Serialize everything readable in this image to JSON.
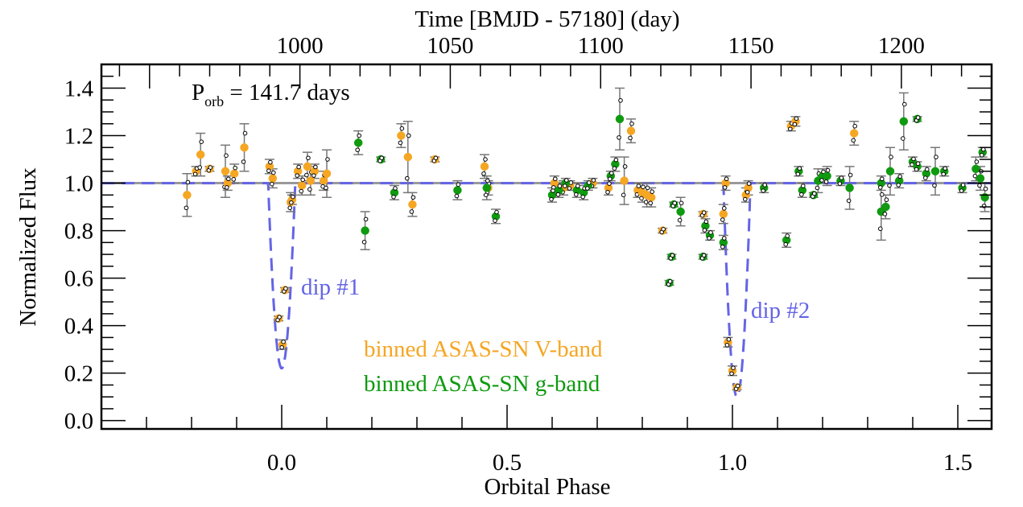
{
  "chart_data": {
    "type": "scatter",
    "title": "",
    "xlabel": "Orbital Phase",
    "ylabel": "Normalized Flux",
    "top_xlabel": "Time [BMJD - 57180] (day)",
    "xlim": [
      -0.4,
      1.575
    ],
    "ylim": [
      -0.035,
      1.5
    ],
    "top_xlim": [
      934.0,
      1230.0
    ],
    "x_ticks": [
      0.0,
      0.5,
      1.0,
      1.5
    ],
    "x_tick_labels": [
      "0.0",
      "0.5",
      "1.0",
      "1.5"
    ],
    "x_minor_step": 0.1,
    "y_ticks": [
      0.0,
      0.2,
      0.4,
      0.6,
      0.8,
      1.0,
      1.2,
      1.4
    ],
    "y_tick_labels": [
      "0.0",
      "0.2",
      "0.4",
      "0.6",
      "0.8",
      "1.0",
      "1.2",
      "1.4"
    ],
    "y_minor_step": 0.05,
    "top_x_ticks": [
      1000,
      1050,
      1100,
      1150,
      1200
    ],
    "top_x_tick_labels": [
      "1000",
      "1050",
      "1100",
      "1150",
      "1200"
    ],
    "top_x_minor_step": 10,
    "grid": false,
    "annotations": {
      "period_label_main": "P",
      "period_label_sub": "orb",
      "period_label_rest": " = 141.7 days",
      "dip1": "dip #1",
      "dip2": "dip #2"
    },
    "legend": {
      "placement": "bottom-center",
      "entries": [
        {
          "label": "binned ASAS-SN V-band",
          "color": "#f5a623"
        },
        {
          "label": "binned ASAS-SN g-band",
          "color": "#0f9a0f"
        }
      ]
    },
    "colors": {
      "v_band": "#f5a623",
      "g_band": "#0f9a0f",
      "model": "#6464e6",
      "baseline": "#999999",
      "errorbar": "#777777"
    },
    "model_curve": {
      "name": "dip model",
      "baseline": 1.0,
      "dips": [
        {
          "center": 0.0,
          "depth_min": 0.22,
          "half_width": 0.03
        },
        {
          "center": 1.01,
          "depth_min": 0.1,
          "half_width": 0.03
        }
      ]
    },
    "series": [
      {
        "name": "binned ASAS-SN V-band",
        "band": "V",
        "points": [
          [
            -0.21,
            0.95,
            0.09
          ],
          [
            -0.19,
            1.05,
            0.02
          ],
          [
            -0.18,
            1.12,
            0.09
          ],
          [
            -0.16,
            1.06,
            0.01
          ],
          [
            -0.125,
            1.05,
            0.11
          ],
          [
            -0.12,
            1.0,
            0.03
          ],
          [
            -0.105,
            1.04,
            0.04
          ],
          [
            -0.083,
            1.15,
            0.1
          ],
          [
            -0.027,
            1.07,
            0.03
          ],
          [
            -0.02,
            1.02,
            0.04
          ],
          [
            0.02,
            0.92,
            0.04
          ],
          [
            0.023,
            0.93,
            0.02
          ],
          [
            0.036,
            1.05,
            0.03
          ],
          [
            0.045,
            0.99,
            0.04
          ],
          [
            0.057,
            1.07,
            0.06
          ],
          [
            0.064,
            1.01,
            0.06
          ],
          [
            0.073,
            1.05,
            0.03
          ],
          [
            0.093,
            1.01,
            0.04
          ],
          [
            0.1,
            1.04,
            0.1
          ],
          [
            0.007,
            0.55,
            0.01
          ],
          [
            -0.007,
            0.43,
            0.01
          ],
          [
            0.002,
            0.32,
            0.02
          ],
          [
            0.265,
            1.2,
            0.05
          ],
          [
            0.28,
            1.11,
            0.15
          ],
          [
            0.29,
            0.91,
            0.05
          ],
          [
            0.34,
            1.1,
            0.01
          ],
          [
            0.45,
            1.07,
            0.05
          ],
          [
            0.458,
            0.98,
            0.03
          ],
          [
            0.605,
            1.0,
            0.03
          ],
          [
            0.625,
            0.98,
            0.03
          ],
          [
            0.64,
            0.99,
            0.02
          ],
          [
            0.69,
            1.0,
            0.02
          ],
          [
            0.725,
            0.98,
            0.03
          ],
          [
            0.76,
            1.01,
            0.1
          ],
          [
            0.775,
            1.22,
            0.05
          ],
          [
            0.79,
            0.97,
            0.03
          ],
          [
            0.8,
            0.96,
            0.04
          ],
          [
            0.81,
            0.95,
            0.05
          ],
          [
            0.82,
            0.94,
            0.04
          ],
          [
            0.845,
            0.8,
            0.01
          ],
          [
            0.935,
            0.87,
            0.01
          ],
          [
            0.98,
            0.87,
            0.04
          ],
          [
            0.985,
            1.0,
            0.03
          ],
          [
            0.99,
            0.33,
            0.02
          ],
          [
            1.0,
            0.21,
            0.02
          ],
          [
            1.01,
            0.14,
            0.01
          ],
          [
            1.03,
            0.95,
            0.03
          ],
          [
            1.035,
            0.98,
            0.03
          ],
          [
            1.13,
            1.24,
            0.02
          ],
          [
            1.14,
            1.26,
            0.02
          ],
          [
            1.27,
            1.21,
            0.05
          ]
        ]
      },
      {
        "name": "binned ASAS-SN g-band",
        "band": "g",
        "points": [
          [
            0.17,
            1.17,
            0.05
          ],
          [
            0.185,
            0.8,
            0.08
          ],
          [
            0.22,
            1.1,
            0.01
          ],
          [
            0.25,
            0.96,
            0.03
          ],
          [
            0.39,
            0.97,
            0.04
          ],
          [
            0.455,
            0.98,
            0.05
          ],
          [
            0.475,
            0.86,
            0.03
          ],
          [
            0.6,
            0.95,
            0.03
          ],
          [
            0.615,
            0.97,
            0.03
          ],
          [
            0.63,
            1.0,
            0.02
          ],
          [
            0.655,
            0.97,
            0.03
          ],
          [
            0.67,
            0.96,
            0.03
          ],
          [
            0.68,
            0.99,
            0.02
          ],
          [
            0.73,
            1.03,
            0.02
          ],
          [
            0.74,
            1.08,
            0.03
          ],
          [
            0.75,
            1.27,
            0.13
          ],
          [
            0.86,
            0.58,
            0.01
          ],
          [
            0.865,
            0.69,
            0.01
          ],
          [
            0.87,
            0.91,
            0.01
          ],
          [
            0.885,
            0.88,
            0.06
          ],
          [
            0.935,
            0.69,
            0.01
          ],
          [
            0.94,
            0.82,
            0.03
          ],
          [
            0.95,
            0.78,
            0.02
          ],
          [
            0.98,
            0.75,
            0.03
          ],
          [
            1.07,
            0.98,
            0.02
          ],
          [
            1.12,
            0.76,
            0.03
          ],
          [
            1.147,
            1.05,
            0.02
          ],
          [
            1.155,
            0.97,
            0.03
          ],
          [
            1.18,
            0.95,
            0.01
          ],
          [
            1.19,
            1.01,
            0.05
          ],
          [
            1.2,
            1.03,
            0.03
          ],
          [
            1.21,
            1.03,
            0.04
          ],
          [
            1.24,
            1.01,
            0.02
          ],
          [
            1.26,
            0.98,
            0.09
          ],
          [
            1.33,
            1.0,
            0.03
          ],
          [
            1.33,
            0.88,
            0.12
          ],
          [
            1.34,
            0.9,
            0.05
          ],
          [
            1.35,
            1.05,
            0.1
          ],
          [
            1.37,
            1.01,
            0.03
          ],
          [
            1.38,
            1.26,
            0.12
          ],
          [
            1.41,
            1.27,
            0.01
          ],
          [
            1.4,
            1.09,
            0.02
          ],
          [
            1.41,
            1.07,
            0.02
          ],
          [
            1.43,
            1.04,
            0.03
          ],
          [
            1.45,
            1.05,
            0.1
          ],
          [
            1.47,
            1.05,
            0.02
          ],
          [
            1.51,
            0.98,
            0.02
          ],
          [
            1.54,
            1.06,
            0.05
          ],
          [
            1.55,
            1.02,
            0.05
          ],
          [
            1.555,
            1.13,
            0.02
          ],
          [
            1.56,
            0.94,
            0.06
          ]
        ]
      }
    ]
  }
}
